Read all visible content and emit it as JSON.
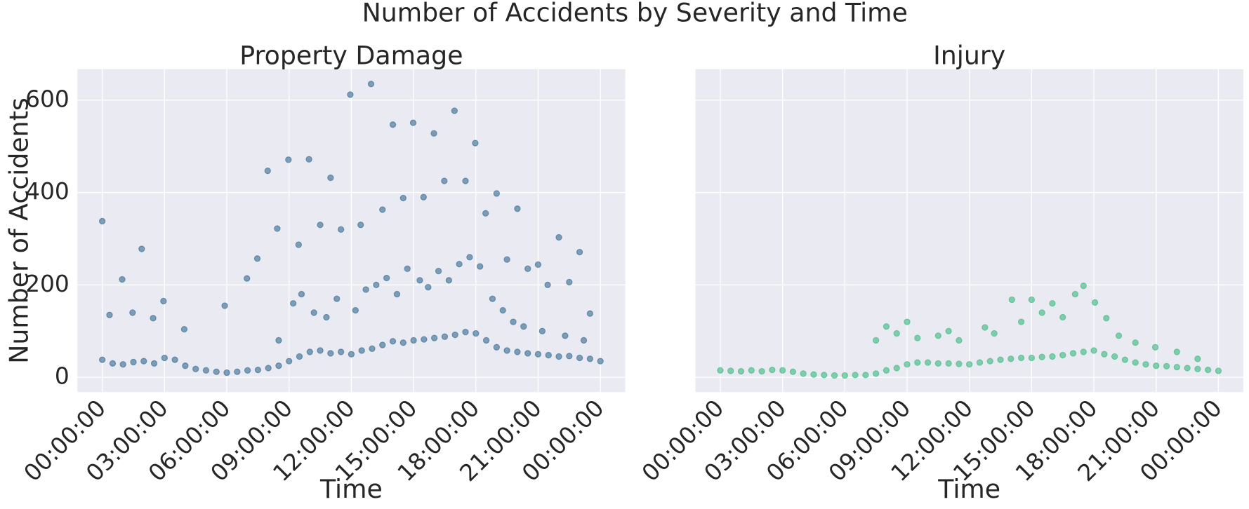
{
  "title": "Number of Accidents by Severity and Time",
  "chart_data": [
    {
      "type": "scatter",
      "title": "Property Damage",
      "xlabel": "Time",
      "ylabel": "Number of Accidents",
      "color": "#31688e",
      "alpha": 0.6,
      "grid": true,
      "x": [
        0,
        0.5,
        1,
        1.5,
        2,
        2.5,
        3,
        3.5,
        4,
        4.5,
        5,
        5.5,
        6,
        6.5,
        7,
        7.5,
        8,
        8.5,
        9,
        9.5,
        10,
        10.5,
        11,
        11.5,
        12,
        12.5,
        13,
        13.5,
        14,
        14.5,
        15,
        15.5,
        16,
        16.5,
        17,
        17.5,
        18,
        18.5,
        19,
        19.5,
        20,
        20.5,
        21,
        21.5,
        22,
        22.5,
        23,
        23.5,
        24,
        0,
        0.35,
        0.96,
        1.46,
        1.9,
        2.45,
        2.95,
        3.95,
        5.9,
        6.97,
        7.47,
        7.97,
        8.43,
        8.97,
        9.46,
        9.96,
        10.5,
        11,
        11.5,
        11.95,
        12.45,
        12.95,
        13.5,
        14,
        14.5,
        14.98,
        15.48,
        15.98,
        16.48,
        16.97,
        17.5,
        17.97,
        18.47,
        19,
        19.5,
        20,
        20.5,
        21,
        21.46,
        22,
        22.5,
        23,
        23.5,
        8.5,
        9.2,
        9.6,
        10.2,
        10.8,
        11.3,
        12.2,
        12.7,
        13.2,
        13.7,
        14.2,
        14.7,
        15.3,
        15.7,
        16.2,
        16.7,
        17.2,
        17.7,
        18.2,
        18.8,
        19.3,
        19.8,
        20.3,
        21.2,
        22.3,
        23.2
      ],
      "values": [
        38,
        30,
        28,
        33,
        35,
        30,
        42,
        38,
        25,
        18,
        15,
        12,
        10,
        12,
        15,
        16,
        20,
        25,
        35,
        45,
        55,
        58,
        52,
        55,
        50,
        58,
        62,
        70,
        78,
        75,
        80,
        82,
        85,
        88,
        92,
        98,
        95,
        80,
        65,
        58,
        55,
        52,
        50,
        48,
        45,
        46,
        42,
        40,
        35,
        338,
        135,
        212,
        140,
        278,
        128,
        165,
        104,
        155,
        214,
        257,
        447,
        322,
        471,
        287,
        472,
        330,
        432,
        320,
        612,
        330,
        635,
        363,
        547,
        388,
        551,
        390,
        528,
        425,
        577,
        425,
        507,
        355,
        398,
        255,
        365,
        235,
        244,
        200,
        303,
        206,
        271,
        138,
        80,
        160,
        180,
        140,
        130,
        170,
        145,
        190,
        200,
        215,
        180,
        235,
        210,
        195,
        230,
        210,
        245,
        260,
        240,
        170,
        145,
        120,
        110,
        100,
        90,
        80
      ],
      "xlim": [
        -1.2,
        25.2
      ],
      "ylim": [
        -32,
        667
      ],
      "xticks": [
        {
          "value": 0,
          "label": "00:00:00"
        },
        {
          "value": 3,
          "label": "03:00:00"
        },
        {
          "value": 6,
          "label": "06:00:00"
        },
        {
          "value": 9,
          "label": "09:00:00"
        },
        {
          "value": 12,
          "label": "12:00:00"
        },
        {
          "value": 15,
          "label": "15:00:00"
        },
        {
          "value": 18,
          "label": "18:00:00"
        },
        {
          "value": 21,
          "label": "21:00:00"
        },
        {
          "value": 24,
          "label": "00:00:00"
        }
      ],
      "yticks": [
        0,
        200,
        400,
        600
      ]
    },
    {
      "type": "scatter",
      "title": "Injury",
      "xlabel": "Time",
      "sharey": true,
      "color": "#35b779",
      "alpha": 0.6,
      "grid": true,
      "x": [
        0,
        0.5,
        1,
        1.5,
        2,
        2.5,
        3,
        3.5,
        4,
        4.5,
        5,
        5.5,
        6,
        6.5,
        7,
        7.5,
        8,
        8.5,
        9,
        9.5,
        10,
        10.5,
        11,
        11.5,
        12,
        12.5,
        13,
        13.5,
        14,
        14.5,
        15,
        15.5,
        16,
        16.5,
        17,
        17.5,
        18,
        18.5,
        19,
        19.5,
        20,
        20.5,
        21,
        21.5,
        22,
        22.5,
        23,
        23.5,
        24,
        7.5,
        8,
        8.5,
        9,
        9.5,
        10.5,
        11,
        11.5,
        12.75,
        13.2,
        14.05,
        14.5,
        15,
        15.5,
        16,
        16.5,
        17.1,
        17.5,
        18.05,
        18.6,
        19.2,
        20,
        20.96,
        22,
        23
      ],
      "values": [
        15,
        14,
        13,
        15,
        13,
        16,
        15,
        12,
        8,
        6,
        5,
        4,
        4,
        5,
        5,
        8,
        15,
        20,
        28,
        32,
        32,
        30,
        30,
        29,
        28,
        32,
        35,
        38,
        40,
        42,
        42,
        44,
        45,
        48,
        52,
        55,
        58,
        50,
        45,
        38,
        32,
        28,
        25,
        24,
        22,
        20,
        18,
        16,
        14,
        80,
        110,
        95,
        120,
        85,
        90,
        100,
        80,
        108,
        95,
        168,
        120,
        168,
        140,
        160,
        130,
        180,
        198,
        162,
        128,
        90,
        75,
        65,
        55,
        40
      ],
      "xlim": [
        -1.2,
        25.2
      ],
      "xticks": [
        {
          "value": 0,
          "label": "00:00:00"
        },
        {
          "value": 3,
          "label": "03:00:00"
        },
        {
          "value": 6,
          "label": "06:00:00"
        },
        {
          "value": 9,
          "label": "09:00:00"
        },
        {
          "value": 12,
          "label": "12:00:00"
        },
        {
          "value": 15,
          "label": "15:00:00"
        },
        {
          "value": 18,
          "label": "18:00:00"
        },
        {
          "value": 21,
          "label": "21:00:00"
        },
        {
          "value": 24,
          "label": "00:00:00"
        }
      ]
    }
  ]
}
